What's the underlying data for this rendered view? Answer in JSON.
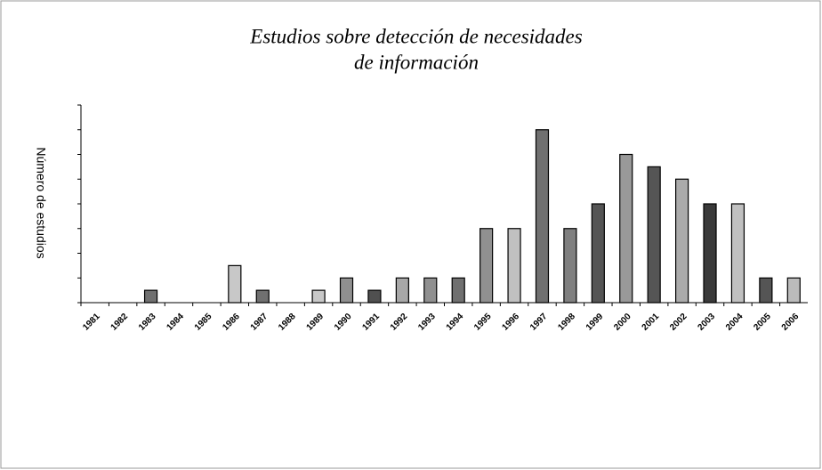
{
  "chart_data": {
    "type": "bar",
    "title_lines": [
      "Estudios sobre detección de necesidades",
      "de información"
    ],
    "y_label": "Número de estudios",
    "categories": [
      "1981",
      "1982",
      "1983",
      "1984",
      "1985",
      "1986",
      "1987",
      "1988",
      "1989",
      "1990",
      "1991",
      "1992",
      "1993",
      "1994",
      "1995",
      "1996",
      "1997",
      "1998",
      "1999",
      "2000",
      "2001",
      "2002",
      "2003",
      "2004",
      "2005",
      "2006"
    ],
    "values": [
      0,
      0,
      1,
      0,
      0,
      3,
      1,
      0,
      1,
      2,
      1,
      2,
      2,
      2,
      6,
      6,
      14,
      6,
      8,
      12,
      11,
      10,
      8,
      8,
      2,
      2
    ],
    "colors": [
      "#808080",
      "#808080",
      "#707070",
      "#808080",
      "#808080",
      "#c8c8c8",
      "#707070",
      "#808080",
      "#c8c8c8",
      "#909090",
      "#505050",
      "#a8a8a8",
      "#909090",
      "#707070",
      "#909090",
      "#c0c0c0",
      "#707070",
      "#808080",
      "#555555",
      "#999999",
      "#555555",
      "#aaaaaa",
      "#3a3a3a",
      "#c0c0c0",
      "#555555",
      "#bbbbbb"
    ],
    "ylim": [
      0,
      16
    ],
    "yticks": [
      0,
      2,
      4,
      6,
      8,
      10,
      12,
      14,
      16
    ],
    "grid": false
  }
}
